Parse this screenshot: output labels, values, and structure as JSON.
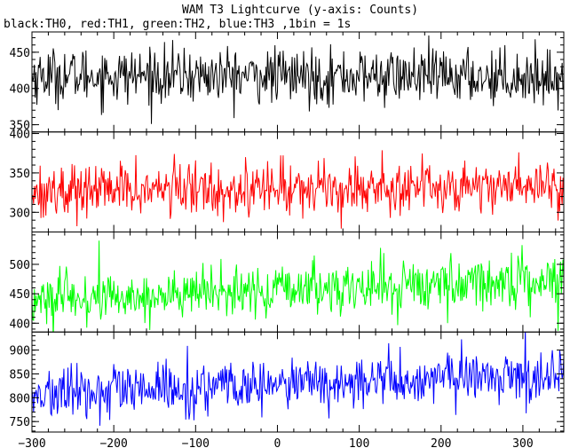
{
  "chart_data": {
    "type": "line",
    "title": "WAM T3 Lightcurve (y-axis: Counts)",
    "subtitle": "black:TH0, red:TH1, green:TH2, blue:TH3 ,1bin = 1s",
    "xlabel": "",
    "ylabel": "",
    "xlim": [
      -300,
      350
    ],
    "x_ticks": [
      -300,
      -200,
      -100,
      0,
      100,
      200,
      300
    ],
    "x_tick_labels": [
      "−300",
      "−200",
      "−100",
      "0",
      "100",
      "200",
      "300"
    ],
    "grid": false,
    "bin_seconds": 1,
    "panels": [
      {
        "series_name": "TH0",
        "color": "#000000",
        "ylim": [
          340,
          478
        ],
        "y_ticks": [
          350,
          400,
          450
        ],
        "y_tick_labels": [
          "350",
          "400",
          "450"
        ],
        "start_level": 418,
        "end_level": 416,
        "noise_sigma": 19
      },
      {
        "series_name": "TH1",
        "color": "#ff0000",
        "ylim": [
          275,
          402
        ],
        "y_ticks": [
          300,
          350,
          400
        ],
        "y_tick_labels": [
          "300",
          "350",
          "400"
        ],
        "start_level": 327,
        "end_level": 335,
        "noise_sigma": 17
      },
      {
        "series_name": "TH2",
        "color": "#00ff00",
        "ylim": [
          385,
          555
        ],
        "y_ticks": [
          400,
          450,
          500
        ],
        "y_tick_labels": [
          "400",
          "450",
          "500"
        ],
        "start_level": 438,
        "end_level": 475,
        "noise_sigma": 22
      },
      {
        "series_name": "TH3",
        "color": "#0000ff",
        "ylim": [
          728,
          938
        ],
        "y_ticks": [
          750,
          800,
          850,
          900
        ],
        "y_tick_labels": [
          "750",
          "800",
          "850",
          "900"
        ],
        "start_level": 805,
        "end_level": 850,
        "noise_sigma": 27
      }
    ]
  }
}
